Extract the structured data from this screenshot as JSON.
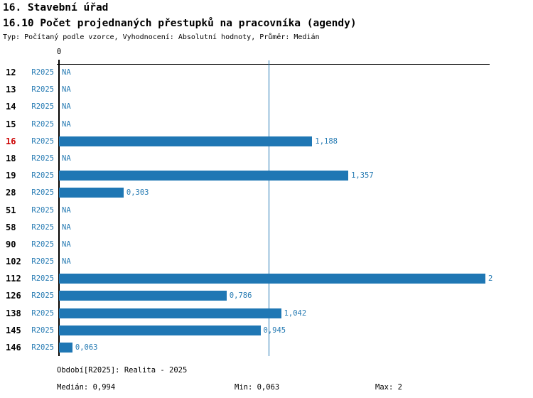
{
  "header": {
    "title_line1": "16. Stavební úřad",
    "title_line2": "16.10 Počet projednaných přestupků na pracovníka (agendy)",
    "subtitle": "Typ: Počítaný podle vzorce, Vyhodnocení: Absolutní hodnoty, Průměr: Medián"
  },
  "axis": {
    "zero_tick_label": "0"
  },
  "colors": {
    "bar_blue": "#1f77b4",
    "text_blue": "#2379b2",
    "highlight_red": "#cc0000",
    "axis_black": "#000000"
  },
  "rows": [
    {
      "id": "12",
      "period": "R2025",
      "value": null,
      "value_label": "NA",
      "highlight": false
    },
    {
      "id": "13",
      "period": "R2025",
      "value": null,
      "value_label": "NA",
      "highlight": false
    },
    {
      "id": "14",
      "period": "R2025",
      "value": null,
      "value_label": "NA",
      "highlight": false
    },
    {
      "id": "15",
      "period": "R2025",
      "value": null,
      "value_label": "NA",
      "highlight": false
    },
    {
      "id": "16",
      "period": "R2025",
      "value": 1.188,
      "value_label": "1,188",
      "highlight": true
    },
    {
      "id": "18",
      "period": "R2025",
      "value": null,
      "value_label": "NA",
      "highlight": false
    },
    {
      "id": "19",
      "period": "R2025",
      "value": 1.357,
      "value_label": "1,357",
      "highlight": false
    },
    {
      "id": "28",
      "period": "R2025",
      "value": 0.303,
      "value_label": "0,303",
      "highlight": false
    },
    {
      "id": "51",
      "period": "R2025",
      "value": null,
      "value_label": "NA",
      "highlight": false
    },
    {
      "id": "58",
      "period": "R2025",
      "value": null,
      "value_label": "NA",
      "highlight": false
    },
    {
      "id": "90",
      "period": "R2025",
      "value": null,
      "value_label": "NA",
      "highlight": false
    },
    {
      "id": "102",
      "period": "R2025",
      "value": null,
      "value_label": "NA",
      "highlight": false
    },
    {
      "id": "112",
      "period": "R2025",
      "value": 2,
      "value_label": "2",
      "highlight": false
    },
    {
      "id": "126",
      "period": "R2025",
      "value": 0.786,
      "value_label": "0,786",
      "highlight": false
    },
    {
      "id": "138",
      "period": "R2025",
      "value": 1.042,
      "value_label": "1,042",
      "highlight": false
    },
    {
      "id": "145",
      "period": "R2025",
      "value": 0.945,
      "value_label": "0,945",
      "highlight": false
    },
    {
      "id": "146",
      "period": "R2025",
      "value": 0.063,
      "value_label": "0,063",
      "highlight": false
    }
  ],
  "footer": {
    "period_line": "Období[R2025]: Realita - 2025",
    "median": "Medián: 0,994",
    "min": "Min: 0,063",
    "max": "Max: 2"
  },
  "chart_data": {
    "type": "bar",
    "orientation": "horizontal",
    "title": "16.10 Počet projednaných přestupků na pracovníka (agendy)",
    "subtitle": "Typ: Počítaný podle vzorce, Vyhodnocení: Absolutní hodnoty, Průměr: Medián",
    "section": "16. Stavební úřad",
    "categories": [
      "12",
      "13",
      "14",
      "15",
      "16",
      "18",
      "19",
      "28",
      "51",
      "58",
      "90",
      "102",
      "112",
      "126",
      "138",
      "145",
      "146"
    ],
    "series": [
      {
        "name": "R2025",
        "values": [
          null,
          null,
          null,
          null,
          1.188,
          null,
          1.357,
          0.303,
          null,
          null,
          null,
          null,
          2,
          0.786,
          1.042,
          0.945,
          0.063
        ]
      }
    ],
    "na_label": "NA",
    "xlim": [
      0,
      2
    ],
    "x_ticks": [
      0
    ],
    "reference_line": {
      "label": "Medián",
      "value": 0.994
    },
    "stats": {
      "median": 0.994,
      "min": 0.063,
      "max": 2
    },
    "highlighted_category": "16",
    "grid": false,
    "legend": false
  }
}
